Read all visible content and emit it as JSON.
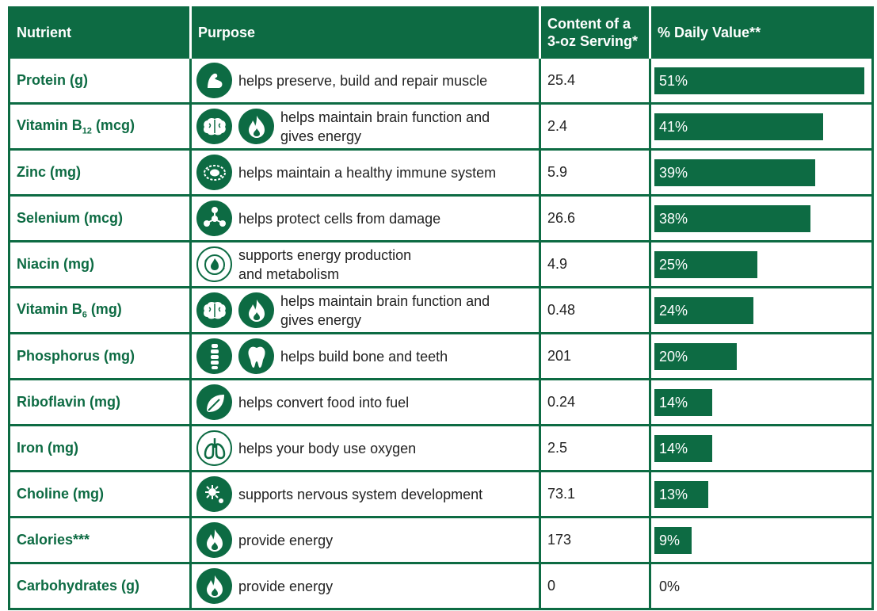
{
  "header": {
    "nutrient": "Nutrient",
    "purpose": "Purpose",
    "content_line1": "Content of a",
    "content_line2": "3-oz Serving*",
    "daily_value": "% Daily Value**"
  },
  "colors": {
    "brand_green": "#0d6b43",
    "header_text": "#ffffff"
  },
  "chart_data": {
    "type": "bar",
    "orientation": "horizontal",
    "categories": [
      "Protein (g)",
      "Vitamin B12 (mcg)",
      "Zinc (mg)",
      "Selenium (mcg)",
      "Niacin (mg)",
      "Vitamin B6 (mg)",
      "Phosphorus (mg)",
      "Riboflavin (mg)",
      "Iron (mg)",
      "Choline (mg)",
      "Calories***",
      "Carbohydrates (g)"
    ],
    "values": [
      51,
      41,
      39,
      38,
      25,
      24,
      20,
      14,
      14,
      13,
      9,
      0
    ],
    "labels": [
      "51%",
      "41%",
      "39%",
      "38%",
      "25%",
      "24%",
      "20%",
      "14%",
      "14%",
      "13%",
      "9%",
      "0%"
    ],
    "xlim": [
      0,
      51
    ]
  },
  "rows": [
    {
      "nutrient": "Protein (g)",
      "base": "Protein (g)",
      "sub": "",
      "tail": "",
      "icons": [
        "muscle-icon"
      ],
      "purpose1": "helps preserve, build and repair muscle",
      "purpose2": "",
      "content": "25.4"
    },
    {
      "nutrient": "Vitamin B12 (mcg)",
      "base": "Vitamin B",
      "sub": "12",
      "tail": " (mcg)",
      "icons": [
        "brain-icon",
        "flame-icon"
      ],
      "purpose1": "helps maintain brain function and",
      "purpose2": "gives energy",
      "content": "2.4"
    },
    {
      "nutrient": "Zinc (mg)",
      "base": "Zinc (mg)",
      "sub": "",
      "tail": "",
      "icons": [
        "immune-cell-icon"
      ],
      "purpose1": "helps maintain a healthy immune system",
      "purpose2": "",
      "content": "5.9"
    },
    {
      "nutrient": "Selenium (mcg)",
      "base": "Selenium (mcg)",
      "sub": "",
      "tail": "",
      "icons": [
        "cell-protection-icon"
      ],
      "purpose1": "helps protect cells from damage",
      "purpose2": "",
      "content": "26.6"
    },
    {
      "nutrient": "Niacin (mg)",
      "base": "Niacin (mg)",
      "sub": "",
      "tail": "",
      "icons": [
        "energy-cycle-icon"
      ],
      "purpose1": "supports energy production",
      "purpose2": "and metabolism",
      "content": "4.9"
    },
    {
      "nutrient": "Vitamin B6 (mg)",
      "base": "Vitamin B",
      "sub": "6",
      "tail": " (mg)",
      "icons": [
        "brain-icon",
        "flame-icon"
      ],
      "purpose1": "helps maintain brain function and",
      "purpose2": "gives energy",
      "content": "0.48"
    },
    {
      "nutrient": "Phosphorus (mg)",
      "base": "Phosphorus (mg)",
      "sub": "",
      "tail": "",
      "icons": [
        "spine-icon",
        "tooth-icon"
      ],
      "purpose1": "helps build bone and teeth",
      "purpose2": "",
      "content": "201"
    },
    {
      "nutrient": "Riboflavin (mg)",
      "base": "Riboflavin (mg)",
      "sub": "",
      "tail": "",
      "icons": [
        "leaf-fuel-icon"
      ],
      "purpose1": "helps convert food into fuel",
      "purpose2": "",
      "content": "0.24"
    },
    {
      "nutrient": "Iron (mg)",
      "base": "Iron (mg)",
      "sub": "",
      "tail": "",
      "icons": [
        "lungs-icon"
      ],
      "purpose1": "helps your body use oxygen",
      "purpose2": "",
      "content": "2.5"
    },
    {
      "nutrient": "Choline (mg)",
      "base": "Choline (mg)",
      "sub": "",
      "tail": "",
      "icons": [
        "neuron-icon"
      ],
      "purpose1": "supports nervous system development",
      "purpose2": "",
      "content": "73.1"
    },
    {
      "nutrient": "Calories***",
      "base": "Calories***",
      "sub": "",
      "tail": "",
      "icons": [
        "flame-icon"
      ],
      "purpose1": "provide energy",
      "purpose2": "",
      "content": "173"
    },
    {
      "nutrient": "Carbohydrates (g)",
      "base": "Carbohydrates (g)",
      "sub": "",
      "tail": "",
      "icons": [
        "flame-icon"
      ],
      "purpose1": "provide energy",
      "purpose2": "",
      "content": "0"
    }
  ]
}
